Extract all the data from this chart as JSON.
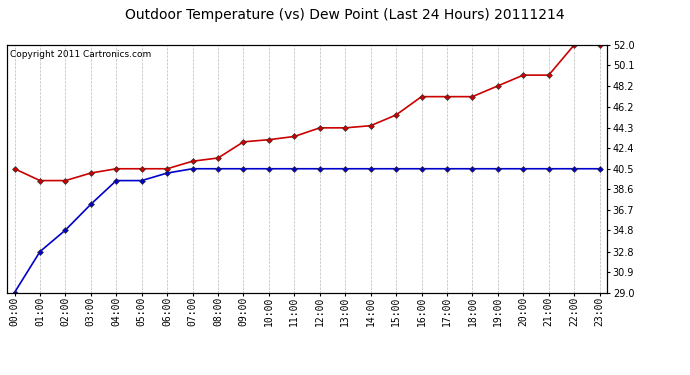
{
  "title": "Outdoor Temperature (vs) Dew Point (Last 24 Hours) 20111214",
  "copyright": "Copyright 2011 Cartronics.com",
  "hours": [
    "00:00",
    "01:00",
    "02:00",
    "03:00",
    "04:00",
    "05:00",
    "06:00",
    "07:00",
    "08:00",
    "09:00",
    "10:00",
    "11:00",
    "12:00",
    "13:00",
    "14:00",
    "15:00",
    "16:00",
    "17:00",
    "18:00",
    "19:00",
    "20:00",
    "21:00",
    "22:00",
    "23:00"
  ],
  "temp": [
    40.5,
    39.4,
    39.4,
    40.1,
    40.5,
    40.5,
    40.5,
    41.2,
    41.5,
    43.0,
    43.2,
    43.5,
    44.3,
    44.3,
    44.5,
    45.5,
    47.2,
    47.2,
    47.2,
    48.2,
    49.2,
    49.2,
    52.0,
    52.0
  ],
  "dew": [
    29.0,
    32.8,
    34.8,
    37.2,
    39.4,
    39.4,
    40.1,
    40.5,
    40.5,
    40.5,
    40.5,
    40.5,
    40.5,
    40.5,
    40.5,
    40.5,
    40.5,
    40.5,
    40.5,
    40.5,
    40.5,
    40.5,
    40.5,
    40.5
  ],
  "temp_color": "#cc0000",
  "dew_color": "#0000cc",
  "marker": "D",
  "markersize": 3,
  "linewidth": 1.2,
  "ylim": [
    29.0,
    52.0
  ],
  "yticks": [
    29.0,
    30.9,
    32.8,
    34.8,
    36.7,
    38.6,
    40.5,
    42.4,
    44.3,
    46.2,
    48.2,
    50.1,
    52.0
  ],
  "bg_color": "#ffffff",
  "grid_color": "#bbbbbb",
  "title_fontsize": 10,
  "copyright_fontsize": 6.5,
  "tick_fontsize": 7
}
